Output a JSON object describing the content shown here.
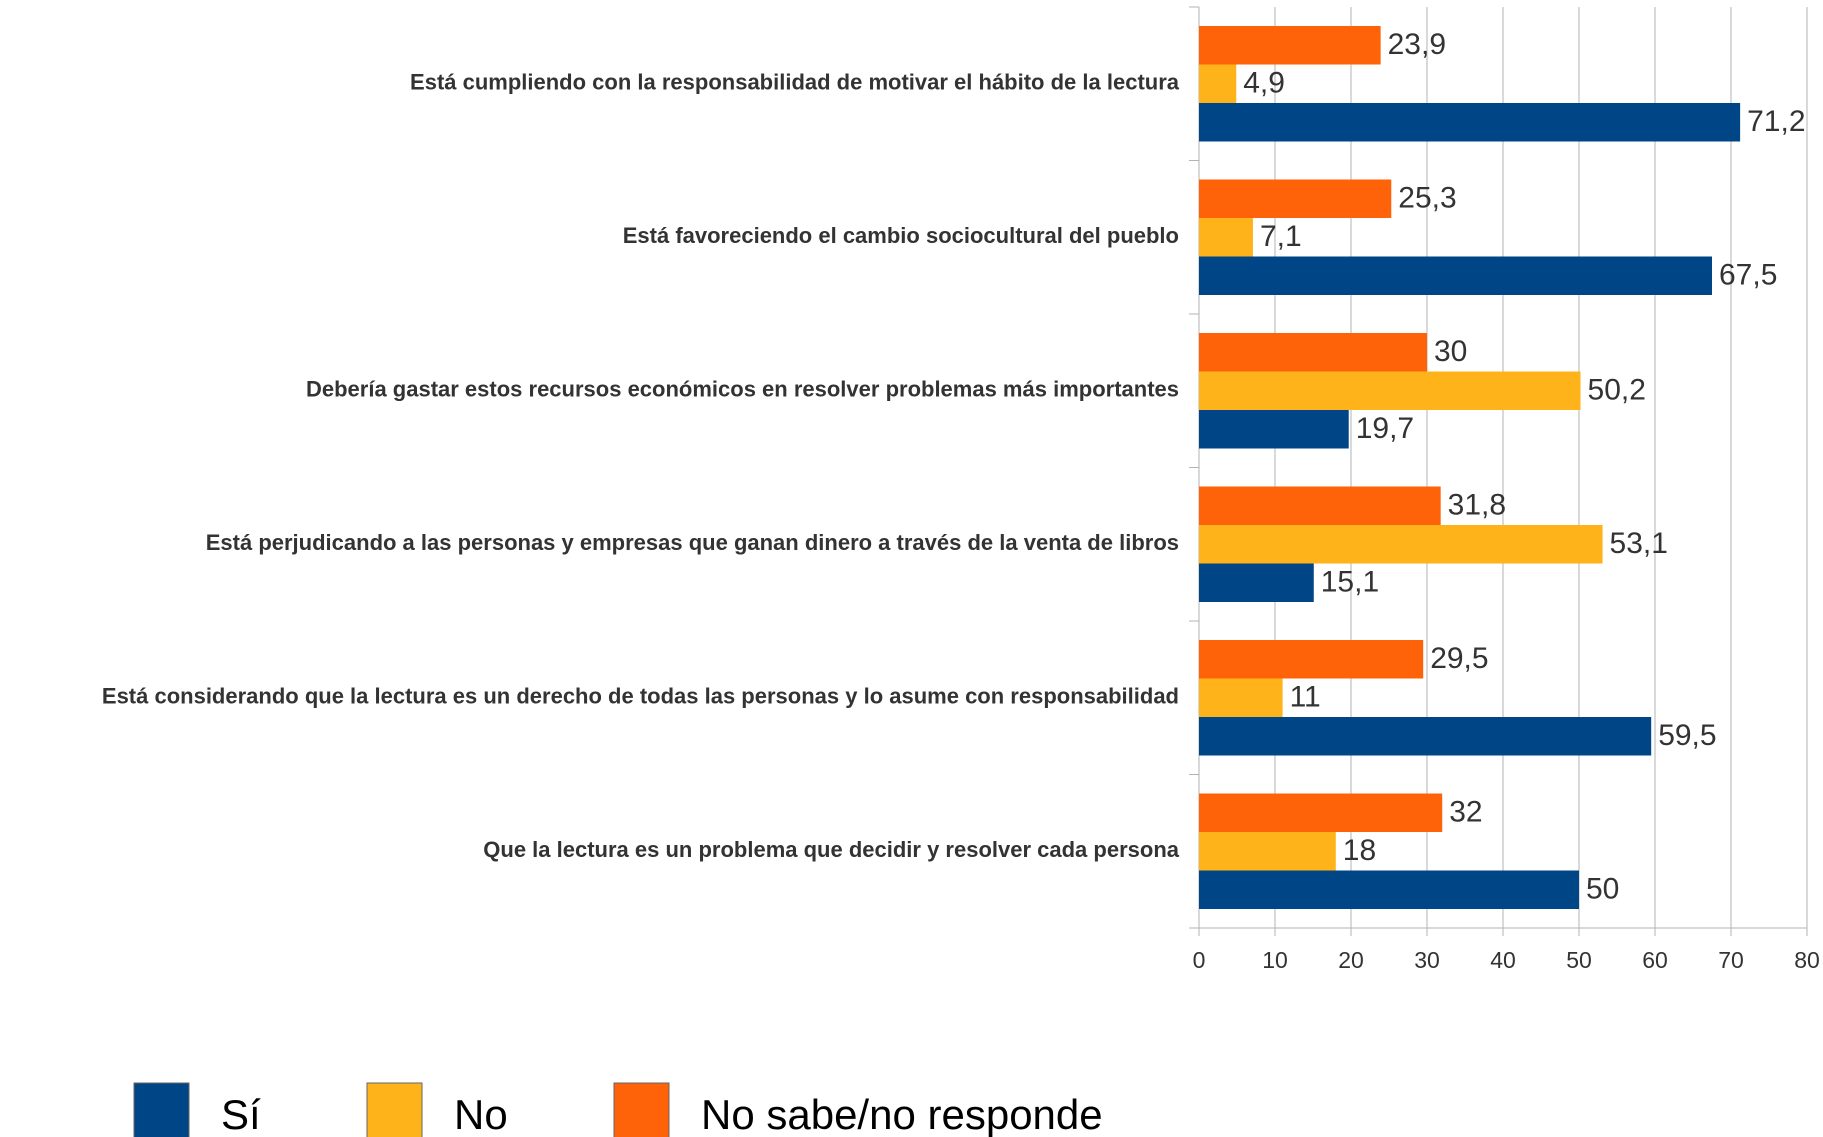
{
  "chart_data": {
    "type": "bar",
    "orientation": "horizontal",
    "categories": [
      "Está cumpliendo con la responsabilidad de motivar el hábito de la lectura",
      "Está favoreciendo el cambio sociocultural del pueblo",
      "Debería gastar estos recursos económicos en resolver problemas más importantes",
      "Está perjudicando a las personas y empresas que ganan dinero a través de la venta de libros",
      "Está considerando que la lectura es un derecho de todas las personas y lo asume con responsabilidad",
      "Que la lectura es un problema que decidir y resolver cada persona"
    ],
    "series": [
      {
        "name": "Sí",
        "color": "#004586",
        "values": [
          71.2,
          67.5,
          19.7,
          15.1,
          59.5,
          50
        ],
        "value_labels": [
          "71,2",
          "67,5",
          "19,7",
          "15,1",
          "59,5",
          "50"
        ]
      },
      {
        "name": "No",
        "color": "#ffb31a",
        "values": [
          4.9,
          7.1,
          50.2,
          53.1,
          11,
          18
        ],
        "value_labels": [
          "4,9",
          "7,1",
          "50,2",
          "53,1",
          "11",
          "18"
        ]
      },
      {
        "name": "No sabe/no responde",
        "color": "#ff6309",
        "values": [
          23.9,
          25.3,
          30,
          31.8,
          29.5,
          32
        ],
        "value_labels": [
          "23,9",
          "25,3",
          "30",
          "31,8",
          "29,5",
          "32"
        ]
      }
    ],
    "xlim": [
      0,
      80
    ],
    "xticks": [
      0,
      10,
      20,
      30,
      40,
      50,
      60,
      70,
      80
    ],
    "grid": true,
    "legend": "bottom"
  }
}
